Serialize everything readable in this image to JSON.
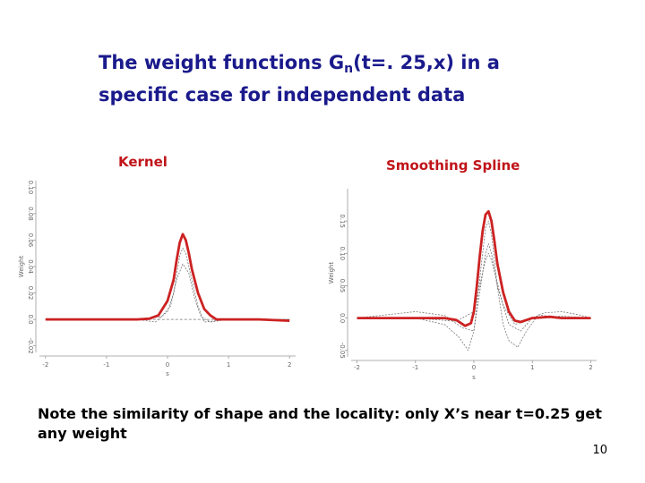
{
  "slide": {
    "title_line1_pre": "The weight functions G",
    "title_sub": "n",
    "title_line1_post": "(t=. 25,x) in a",
    "title_line2": "specific case for independent data",
    "note": "Note the similarity of shape and the locality: only X’s near t=0.25 get any weight",
    "page_number": "10",
    "colors": {
      "title": "#1a1a8c",
      "panel_label": "#c0151a",
      "main_curve": "#cc2222",
      "aux_curve": "#777777"
    }
  },
  "chart_data": [
    {
      "type": "line",
      "title": "Kernel",
      "xlabel": "s",
      "ylabel": "Weight",
      "xlim": [
        -2.1,
        2.1
      ],
      "ylim": [
        -0.025,
        0.105
      ],
      "x_ticks": [
        "-2",
        "-1",
        "0",
        "1",
        "2"
      ],
      "y_ticks": [
        "-0.02",
        "0.0",
        "0.02",
        "0.04",
        "0.06",
        "0.08",
        "0.10"
      ],
      "grid": false,
      "series": [
        {
          "style": "main",
          "x": [
            -2.0,
            -1.5,
            -1.0,
            -0.5,
            -0.3,
            -0.15,
            0.0,
            0.1,
            0.15,
            0.2,
            0.25,
            0.3,
            0.35,
            0.4,
            0.5,
            0.6,
            0.7,
            0.8,
            1.0,
            1.5,
            2.0
          ],
          "y": [
            0.0,
            0.0,
            0.0,
            0.0,
            0.0005,
            0.003,
            0.014,
            0.03,
            0.045,
            0.058,
            0.0645,
            0.06,
            0.05,
            0.038,
            0.02,
            0.008,
            0.003,
            0.0,
            0.0,
            0.0,
            -0.001
          ]
        },
        {
          "style": "aux",
          "x": [
            -2.0,
            -0.5,
            -0.2,
            0.0,
            0.1,
            0.2,
            0.25,
            0.3,
            0.4,
            0.5,
            0.6,
            0.8,
            1.0,
            2.0
          ],
          "y": [
            0.0,
            0.0,
            -0.002,
            0.006,
            0.02,
            0.048,
            0.054,
            0.05,
            0.03,
            0.01,
            -0.002,
            -0.001,
            0.0,
            0.0
          ]
        },
        {
          "style": "aux",
          "x": [
            -2.0,
            -0.5,
            -0.1,
            0.05,
            0.15,
            0.25,
            0.35,
            0.45,
            0.55,
            0.7,
            1.0,
            2.0
          ],
          "y": [
            0.0,
            0.0,
            0.002,
            0.01,
            0.03,
            0.042,
            0.035,
            0.015,
            0.002,
            -0.002,
            0.0,
            0.0
          ]
        },
        {
          "style": "dashed",
          "x": [
            -2.0,
            2.0
          ],
          "y": [
            0.0,
            0.0
          ]
        }
      ]
    },
    {
      "type": "line",
      "title": "Smoothing Spline",
      "xlabel": "s",
      "ylabel": "Weight",
      "xlim": [
        -2.1,
        2.1
      ],
      "ylim": [
        -0.06,
        0.2
      ],
      "x_ticks": [
        "-2",
        "-1",
        "0",
        "1",
        "2"
      ],
      "y_ticks": [
        "-0.05",
        "0.0",
        "0.05",
        "0.10",
        "0.15"
      ],
      "grid": false,
      "series": [
        {
          "style": "main",
          "x": [
            -2.0,
            -1.5,
            -1.0,
            -0.5,
            -0.3,
            -0.15,
            -0.05,
            0.0,
            0.05,
            0.1,
            0.15,
            0.2,
            0.25,
            0.3,
            0.35,
            0.4,
            0.5,
            0.6,
            0.7,
            0.8,
            1.0,
            1.3,
            1.5,
            2.0
          ],
          "y": [
            0.0,
            0.0,
            0.0,
            0.0,
            -0.003,
            -0.012,
            -0.008,
            0.01,
            0.05,
            0.095,
            0.135,
            0.16,
            0.165,
            0.15,
            0.12,
            0.085,
            0.04,
            0.01,
            -0.004,
            -0.006,
            0.0,
            0.002,
            0.0,
            0.0
          ]
        },
        {
          "style": "aux",
          "x": [
            -2.0,
            -1.5,
            -1.0,
            -0.5,
            -0.2,
            0.0,
            0.1,
            0.2,
            0.25,
            0.3,
            0.4,
            0.6,
            0.8,
            1.0,
            1.2,
            1.5,
            1.8,
            2.0
          ],
          "y": [
            0.0,
            0.005,
            0.01,
            0.004,
            -0.015,
            -0.02,
            0.04,
            0.1,
            0.115,
            0.1,
            0.05,
            -0.01,
            -0.02,
            0.0,
            0.008,
            0.01,
            0.005,
            0.0
          ]
        },
        {
          "style": "aux",
          "x": [
            -2.0,
            -1.0,
            -0.5,
            -0.25,
            -0.1,
            0.0,
            0.1,
            0.2,
            0.25,
            0.3,
            0.4,
            0.5,
            0.6,
            0.75,
            0.9,
            1.1,
            1.5,
            2.0
          ],
          "y": [
            0.0,
            0.0,
            -0.01,
            -0.03,
            -0.05,
            -0.02,
            0.06,
            0.14,
            0.15,
            0.13,
            0.05,
            -0.01,
            -0.035,
            -0.045,
            -0.02,
            0.005,
            0.0,
            0.0
          ]
        },
        {
          "style": "aux",
          "x": [
            -2.0,
            -1.0,
            -0.3,
            0.0,
            0.2,
            0.25,
            0.3,
            0.5,
            0.7,
            1.0,
            1.5,
            2.0
          ],
          "y": [
            0.0,
            0.0,
            -0.005,
            0.01,
            0.09,
            0.1,
            0.09,
            0.02,
            -0.01,
            0.0,
            0.003,
            0.0
          ]
        }
      ]
    }
  ]
}
